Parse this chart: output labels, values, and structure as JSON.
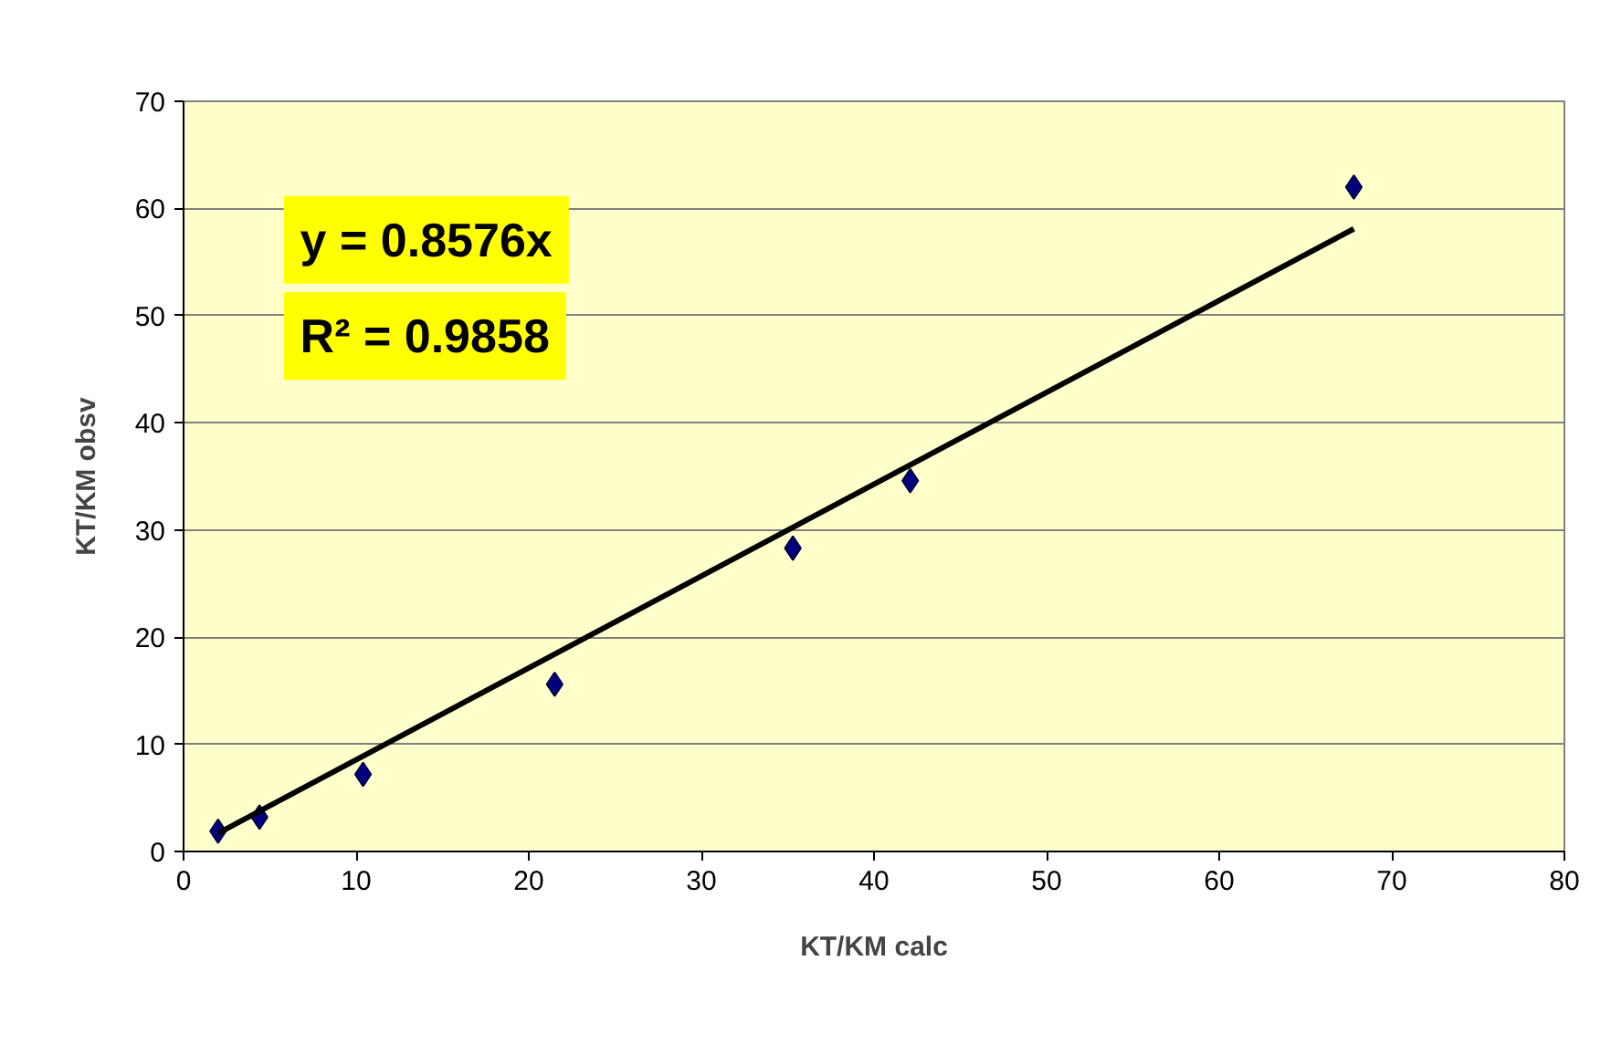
{
  "chart_data": {
    "type": "scatter",
    "xlabel": "KT/KM calc",
    "ylabel": "KT/KM obsv",
    "xlim": [
      0,
      80
    ],
    "xticks": [
      0,
      10,
      20,
      30,
      40,
      50,
      60,
      70,
      80
    ],
    "ylim": [
      0,
      70
    ],
    "yticks": [
      0,
      10,
      20,
      30,
      40,
      50,
      60,
      70
    ],
    "grid": "y",
    "series": [
      {
        "marker": "diamond",
        "color": "#000080",
        "x": [
          2.0,
          4.4,
          10.4,
          21.5,
          35.3,
          42.1,
          67.8
        ],
        "values": [
          1.9,
          3.2,
          7.2,
          15.6,
          28.3,
          34.6,
          62.0
        ]
      },
      {
        "type": "line",
        "color": "#000000",
        "x": [
          2.0,
          67.8
        ],
        "values": [
          1.7,
          58.1
        ]
      }
    ],
    "annotations": [
      "y = 0.8576x",
      "R² = 0.9858"
    ]
  }
}
